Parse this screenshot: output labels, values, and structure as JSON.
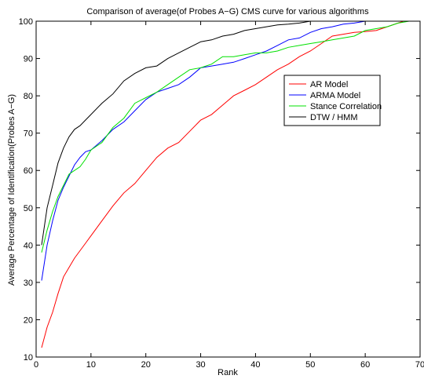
{
  "chart_data": {
    "type": "line",
    "title": "Comparison of average(of Probes A−G) CMS curve for various algorithms",
    "xlabel": "Rank",
    "ylabel": "Average Percentage of Identification(Probes A−G)",
    "xlim": [
      0,
      70
    ],
    "ylim": [
      10,
      100
    ],
    "xticks": [
      "0",
      "10",
      "20",
      "30",
      "40",
      "50",
      "60",
      "70"
    ],
    "yticks": [
      "10",
      "20",
      "30",
      "40",
      "50",
      "60",
      "70",
      "80",
      "90",
      "100"
    ],
    "grid": false,
    "legend_position": "right-center",
    "series": [
      {
        "name": "AR Model",
        "color": "#ff0000",
        "x": [
          1,
          2,
          3,
          4,
          5,
          6,
          7,
          8,
          9,
          10,
          12,
          14,
          16,
          18,
          20,
          22,
          24,
          26,
          28,
          30,
          32,
          34,
          36,
          38,
          40,
          42,
          44,
          46,
          48,
          50,
          52,
          54,
          56,
          58,
          60,
          62,
          64,
          66,
          67
        ],
        "values": [
          12.5,
          18,
          22,
          27,
          31.5,
          34,
          36.5,
          38.5,
          40.5,
          42.5,
          46.5,
          50.5,
          54,
          56.5,
          60,
          63.5,
          66,
          67.5,
          70.5,
          73.5,
          75,
          77.5,
          80,
          81.5,
          83,
          85,
          87,
          88.5,
          90.5,
          92,
          94,
          96,
          96.5,
          97,
          97.2,
          97.5,
          98.5,
          99.5,
          100
        ]
      },
      {
        "name": "ARMA Model",
        "color": "#0000ff",
        "x": [
          1,
          2,
          3,
          4,
          5,
          6,
          7,
          8,
          9,
          10,
          12,
          14,
          16,
          18,
          20,
          22,
          24,
          26,
          28,
          30,
          32,
          34,
          36,
          38,
          40,
          42,
          44,
          46,
          48,
          50,
          52,
          54,
          56,
          58,
          60,
          62,
          64,
          66,
          68
        ],
        "values": [
          30.5,
          40,
          46.5,
          52,
          55.5,
          58.5,
          61.5,
          63.5,
          65,
          65.5,
          68,
          71,
          73,
          76,
          79,
          81,
          82,
          83,
          85,
          87.5,
          88,
          88.5,
          89,
          90,
          91,
          92,
          93.5,
          95,
          95.5,
          97,
          98,
          98.5,
          99.2,
          99.5,
          100,
          100,
          100,
          100,
          100
        ]
      },
      {
        "name": "Stance Correlation",
        "color": "#00e000",
        "x": [
          1,
          2,
          3,
          4,
          5,
          6,
          7,
          8,
          9,
          10,
          12,
          14,
          16,
          18,
          20,
          22,
          24,
          26,
          28,
          30,
          32,
          34,
          36,
          38,
          40,
          42,
          44,
          46,
          48,
          50,
          52,
          54,
          56,
          58,
          60,
          62,
          64,
          66,
          68
        ],
        "values": [
          38,
          44,
          49,
          53,
          56,
          59,
          60,
          61,
          63,
          65.5,
          67.5,
          71.5,
          74,
          78,
          79.5,
          81,
          83,
          85,
          87,
          87.5,
          88.5,
          90.5,
          90.5,
          91,
          91.5,
          91.5,
          92,
          93,
          93.5,
          94,
          94.5,
          95,
          95.5,
          96,
          97.5,
          98,
          98.5,
          99.5,
          100
        ]
      },
      {
        "name": "DTW / HMM",
        "color": "#000000",
        "x": [
          1,
          2,
          3,
          4,
          5,
          6,
          7,
          8,
          9,
          10,
          12,
          14,
          16,
          18,
          20,
          22,
          24,
          26,
          28,
          30,
          32,
          34,
          36,
          38,
          40,
          42,
          44,
          46,
          48,
          50,
          52,
          54,
          56,
          58,
          60,
          62,
          64,
          66,
          68
        ],
        "values": [
          40,
          50,
          56,
          62,
          66,
          69,
          71,
          72,
          73.5,
          75,
          78,
          80.5,
          84,
          86,
          87.5,
          88,
          90,
          91.5,
          93,
          94.5,
          95,
          96,
          96.5,
          97.5,
          98,
          98.5,
          99,
          99.2,
          99.5,
          100,
          100,
          100,
          100,
          100,
          100,
          100,
          100,
          100,
          100
        ]
      }
    ]
  }
}
